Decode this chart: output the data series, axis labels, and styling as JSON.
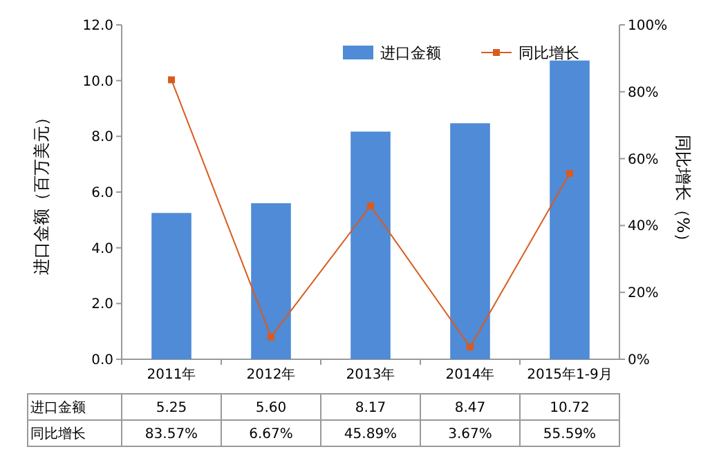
{
  "chart_data": {
    "type": "bar",
    "categories": [
      "2011年",
      "2012年",
      "2013年",
      "2014年",
      "2015年1-9月"
    ],
    "ylabel": "进口金额（百万美元）",
    "y2label": "同比增长（%）",
    "ylim": [
      0,
      12
    ],
    "yticks": [
      {
        "value": 0,
        "label": "0.0"
      },
      {
        "value": 2,
        "label": "2.0"
      },
      {
        "value": 4,
        "label": "4.0"
      },
      {
        "value": 6,
        "label": "6.0"
      },
      {
        "value": 8,
        "label": "8.0"
      },
      {
        "value": 10,
        "label": "10.0"
      },
      {
        "value": 12,
        "label": "12.0"
      }
    ],
    "y2lim": [
      0,
      100
    ],
    "y2ticks": [
      {
        "value": 0,
        "label": "0%"
      },
      {
        "value": 20,
        "label": "20%"
      },
      {
        "value": 40,
        "label": "40%"
      },
      {
        "value": 60,
        "label": "60%"
      },
      {
        "value": 80,
        "label": "80%"
      },
      {
        "value": 100,
        "label": "100%"
      }
    ],
    "legend": "top right",
    "grid": false,
    "series": [
      {
        "name": "进口金额",
        "color": "#4f8bd6",
        "values": [
          5.25,
          5.6,
          8.17,
          8.47,
          10.72
        ],
        "value_labels": [
          "5.25",
          "5.60",
          "8.17",
          "8.47",
          "10.72"
        ]
      },
      {
        "name": "同比增长",
        "type": "line",
        "axis": "y2",
        "color": "#d95b1e",
        "marker": "square",
        "line_style": "solid",
        "values": [
          83.57,
          6.67,
          45.89,
          3.67,
          55.59
        ],
        "value_labels": [
          "83.57%",
          "6.67%",
          "45.89%",
          "3.67%",
          "55.59%"
        ]
      }
    ]
  }
}
